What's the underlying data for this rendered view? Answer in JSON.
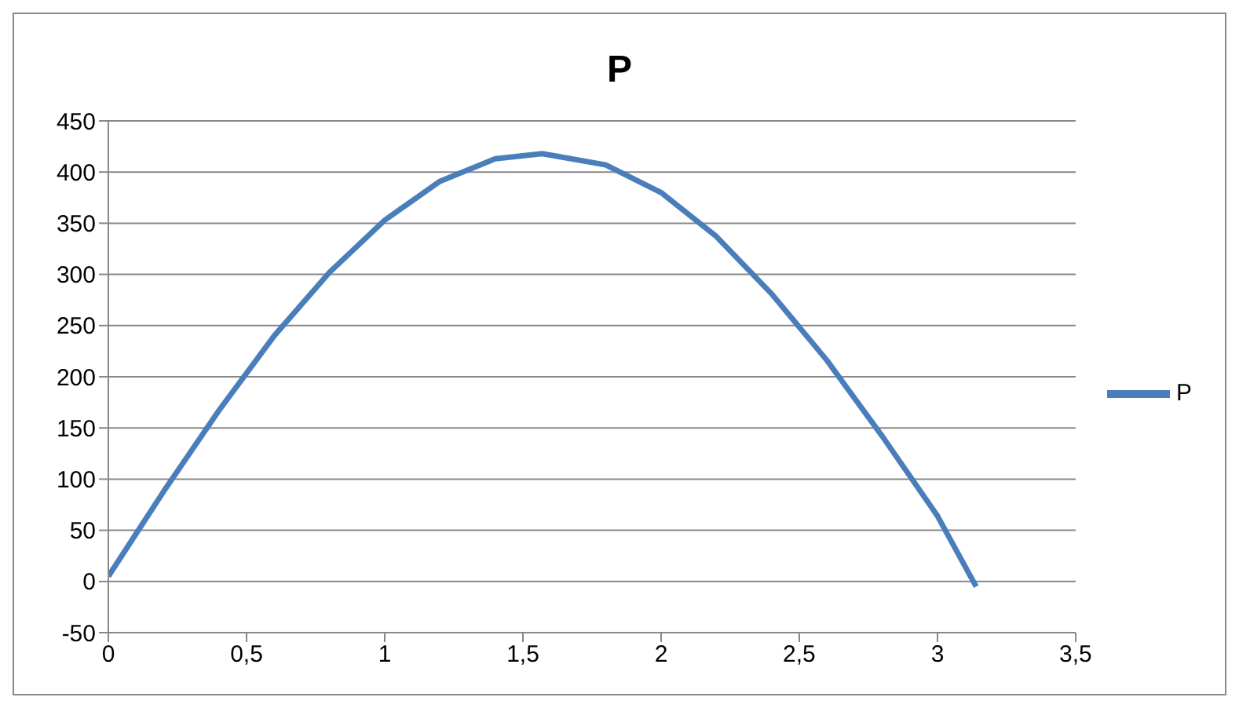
{
  "chart_data": {
    "type": "line",
    "title": "P",
    "series": [
      {
        "name": "P",
        "color": "#4a7ebb",
        "x": [
          0,
          0.2,
          0.4,
          0.6,
          0.8,
          1.0,
          1.2,
          1.4,
          1.57,
          1.8,
          2.0,
          2.2,
          2.4,
          2.6,
          2.8,
          3.0,
          3.14
        ],
        "values": [
          5,
          88,
          167,
          240,
          302,
          353,
          391,
          413,
          418,
          407,
          380,
          337,
          281,
          216,
          142,
          64,
          -5
        ]
      }
    ],
    "xlim": [
      0,
      3.5
    ],
    "xticks": [
      0,
      {
        "value": 0.5,
        "label": "0,5"
      },
      1,
      {
        "value": 1.5,
        "label": "1,5"
      },
      2,
      {
        "value": 2.5,
        "label": "2,5"
      },
      3,
      {
        "value": 3.5,
        "label": "3,5"
      }
    ],
    "ylim": [
      -50,
      450
    ],
    "yticks": [
      -50,
      0,
      50,
      100,
      150,
      200,
      250,
      300,
      350,
      400,
      450
    ],
    "grid": "y",
    "legend": "right",
    "marker": "none",
    "line_style": "solid"
  }
}
